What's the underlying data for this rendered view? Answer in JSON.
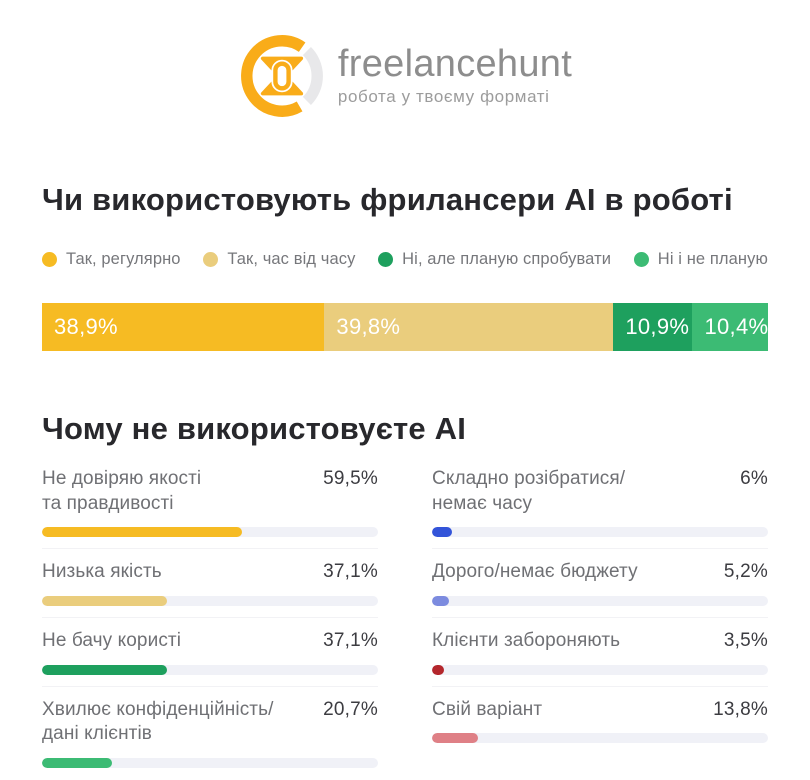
{
  "brand": {
    "name": "freelancehunt",
    "tagline": "робота у твоєму форматі",
    "logo_orange": "#F9AC19",
    "logo_gray": "#E8E8EA"
  },
  "section1": {
    "title": "Чи використовують фрилансери AI в роботі",
    "legend": [
      {
        "label": "Так, регулярно",
        "color": "#F6BB23"
      },
      {
        "label": "Так, час від часу",
        "color": "#EACD7D"
      },
      {
        "label": "Ні, але планую спробувати",
        "color": "#1EA05E"
      },
      {
        "label": "Ні і не планую",
        "color": "#3CBB74"
      }
    ],
    "segments": [
      {
        "label": "38,9%",
        "percent": 38.9,
        "color": "#F6BB23"
      },
      {
        "label": "39,8%",
        "percent": 39.8,
        "color": "#EACD7D"
      },
      {
        "label": "10,9%",
        "percent": 10.9,
        "color": "#1EA05E"
      },
      {
        "label": "10,4%",
        "percent": 10.4,
        "color": "#3CBB74"
      }
    ]
  },
  "section2": {
    "title": "Чому не використовуєте AI",
    "items_left": [
      {
        "label": "Не довіряю якості\nта правдивості",
        "value": "59,5%",
        "percent": 59.5,
        "color": "#F6BB23"
      },
      {
        "label": "Низька якість",
        "value": "37,1%",
        "percent": 37.1,
        "color": "#EACD7D"
      },
      {
        "label": "Не бачу користі",
        "value": "37,1%",
        "percent": 37.1,
        "color": "#1EA05E"
      },
      {
        "label": "Хвилює конфіденційність/\nдані клієнтів",
        "value": "20,7%",
        "percent": 20.7,
        "color": "#3CBB74"
      }
    ],
    "items_right": [
      {
        "label": "Складно розібратися/\nнемає часу",
        "value": "6%",
        "percent": 6,
        "color": "#3354D9"
      },
      {
        "label": "Дорого/немає бюджету",
        "value": "5,2%",
        "percent": 5.2,
        "color": "#7C8BDF"
      },
      {
        "label": "Клієнти забороняють",
        "value": "3,5%",
        "percent": 3.5,
        "color": "#B4272C"
      },
      {
        "label": "Свій варіант",
        "value": "13,8%",
        "percent": 13.8,
        "color": "#DF8086"
      }
    ]
  },
  "chart_data": [
    {
      "type": "bar",
      "variant": "stacked-horizontal-100pct",
      "title": "Чи використовують фрилансери AI в роботі",
      "categories": [
        "Так, регулярно",
        "Так, час від часу",
        "Ні, але планую спробувати",
        "Ні і не планую"
      ],
      "values": [
        38.9,
        39.8,
        10.9,
        10.4
      ],
      "data_labels": [
        "38,9%",
        "39,8%",
        "10,9%",
        "10,4%"
      ],
      "unit": "%",
      "colors": [
        "#F6BB23",
        "#EACD7D",
        "#1EA05E",
        "#3CBB74"
      ],
      "legend_position": "top",
      "xlim": [
        0,
        100
      ],
      "grid": false
    },
    {
      "type": "bar",
      "variant": "horizontal-progress-two-columns",
      "title": "Чому не використовуєте AI",
      "categories": [
        "Не довіряю якості та правдивості",
        "Низька якість",
        "Не бачу користі",
        "Хвилює конфіденційність/ дані клієнтів",
        "Складно розібратися/ немає часу",
        "Дорого/немає бюджету",
        "Клієнти забороняють",
        "Свій варіант"
      ],
      "values": [
        59.5,
        37.1,
        37.1,
        20.7,
        6,
        5.2,
        3.5,
        13.8
      ],
      "data_labels": [
        "59,5%",
        "37,1%",
        "37,1%",
        "20,7%",
        "6%",
        "5,2%",
        "3,5%",
        "13,8%"
      ],
      "unit": "%",
      "colors": [
        "#F6BB23",
        "#EACD7D",
        "#1EA05E",
        "#3CBB74",
        "#3354D9",
        "#7C8BDF",
        "#B4272C",
        "#DF8086"
      ],
      "track_color": "#F0F1F7",
      "xlim": [
        0,
        100
      ],
      "grid": false
    }
  ]
}
